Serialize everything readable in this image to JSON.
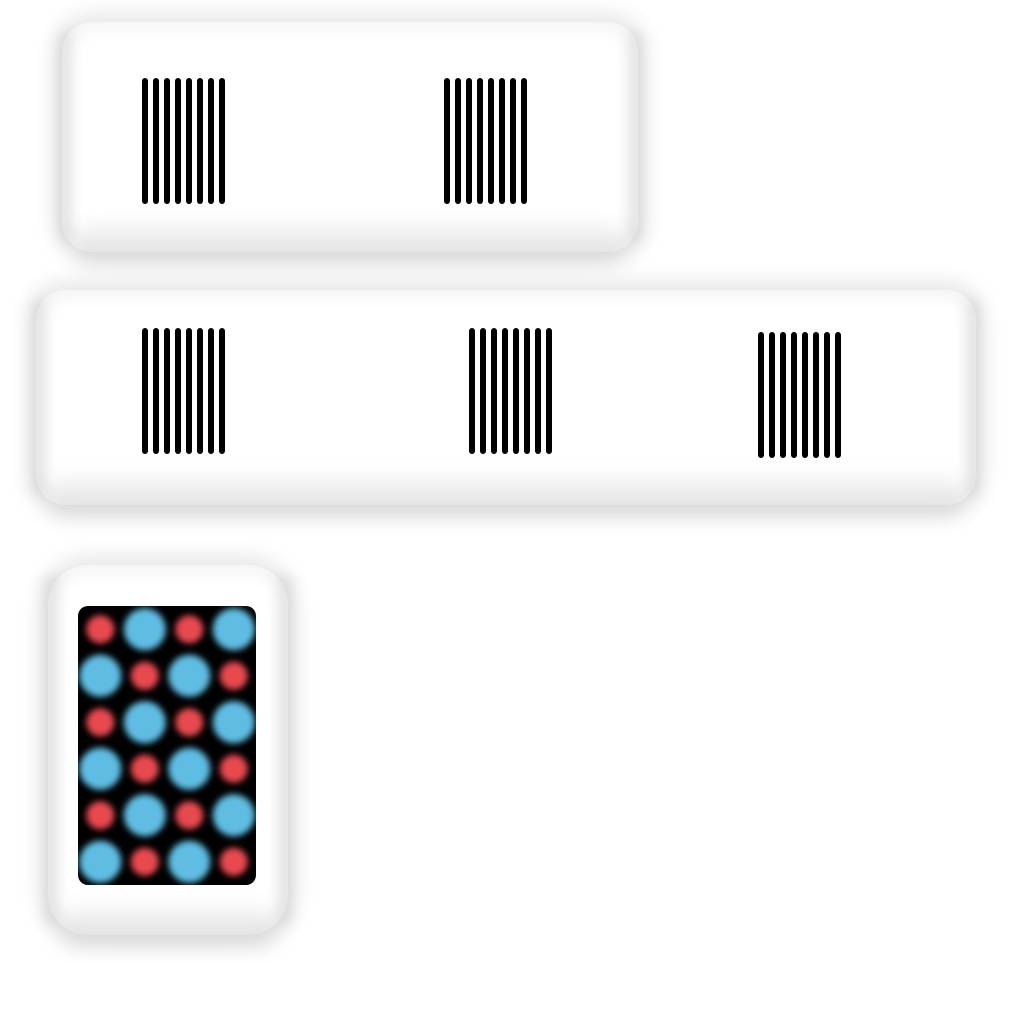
{
  "scene": {
    "background": "#ffffff",
    "panel_color": "#ffffff",
    "stripe_color": "#000000"
  },
  "barcodes": [
    {
      "stripes": 8
    },
    {
      "stripes": 8
    },
    {
      "stripes": 8
    },
    {
      "stripes": 8
    },
    {
      "stripes": 8
    }
  ],
  "dot_pattern": {
    "background": "#000000",
    "colors": {
      "red": "#e8484f",
      "blue": "#5fbde4"
    },
    "rows": [
      [
        "red",
        "blue",
        "red",
        "blue"
      ],
      [
        "blue",
        "red",
        "blue",
        "red"
      ],
      [
        "red",
        "blue",
        "red",
        "blue"
      ],
      [
        "blue",
        "red",
        "blue",
        "red"
      ],
      [
        "red",
        "blue",
        "red",
        "blue"
      ],
      [
        "blue",
        "red",
        "blue",
        "red"
      ]
    ]
  }
}
